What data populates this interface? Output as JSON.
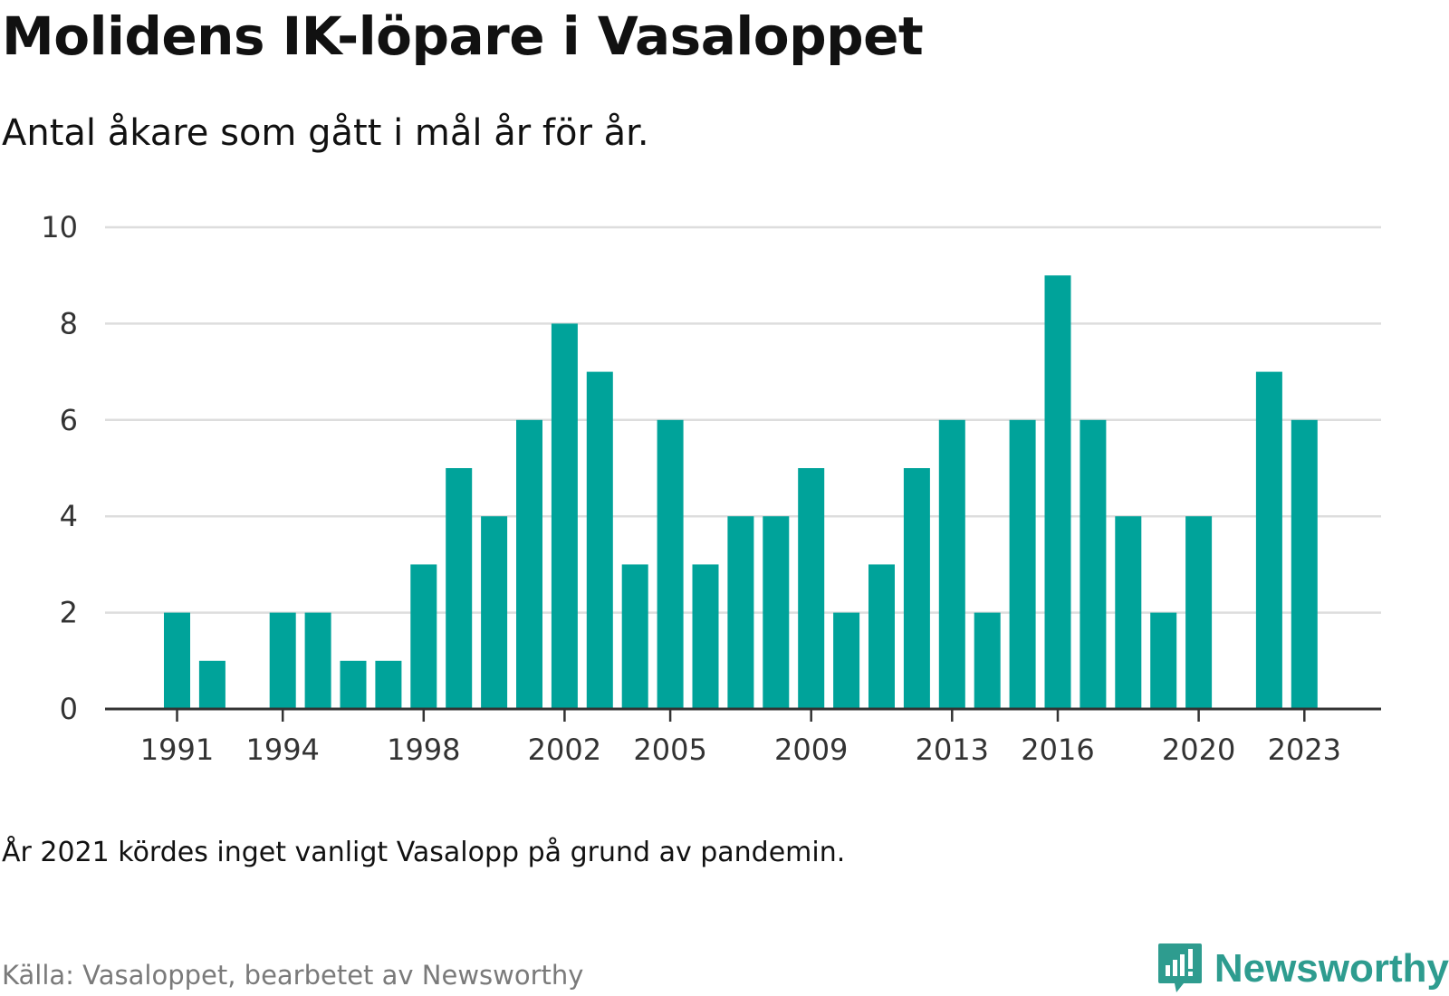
{
  "header": {
    "title": "Molidens IK-löpare i Vasaloppet",
    "subtitle": "Antal åkare som gått i mål år för år."
  },
  "footer": {
    "note": "År 2021 kördes inget vanligt Vasalopp på grund av pandemin.",
    "source": "Källa: Vasaloppet, bearbetet av Newsworthy",
    "brand": "Newsworthy"
  },
  "colors": {
    "bar": "#00a39a",
    "grid": "#dddddd",
    "axis": "#333333",
    "brand": "#2e9c8f"
  },
  "chart_data": {
    "type": "bar",
    "title": "Molidens IK-löpare i Vasaloppet",
    "xlabel": "",
    "ylabel": "",
    "ylim": [
      0,
      10
    ],
    "y_ticks": [
      0,
      2,
      4,
      6,
      8,
      10
    ],
    "x_tick_labels": [
      1991,
      1994,
      1998,
      2002,
      2005,
      2009,
      2013,
      2016,
      2020,
      2023
    ],
    "grid": true,
    "categories": [
      1991,
      1992,
      1993,
      1994,
      1995,
      1996,
      1997,
      1998,
      1999,
      2000,
      2001,
      2002,
      2003,
      2004,
      2005,
      2006,
      2007,
      2008,
      2009,
      2010,
      2011,
      2012,
      2013,
      2014,
      2015,
      2016,
      2017,
      2018,
      2019,
      2020,
      2021,
      2022,
      2023
    ],
    "values": [
      2,
      1,
      0,
      2,
      2,
      1,
      1,
      3,
      5,
      4,
      6,
      8,
      7,
      3,
      6,
      3,
      4,
      4,
      5,
      2,
      3,
      5,
      6,
      2,
      6,
      9,
      6,
      4,
      2,
      4,
      0,
      7,
      6
    ]
  }
}
